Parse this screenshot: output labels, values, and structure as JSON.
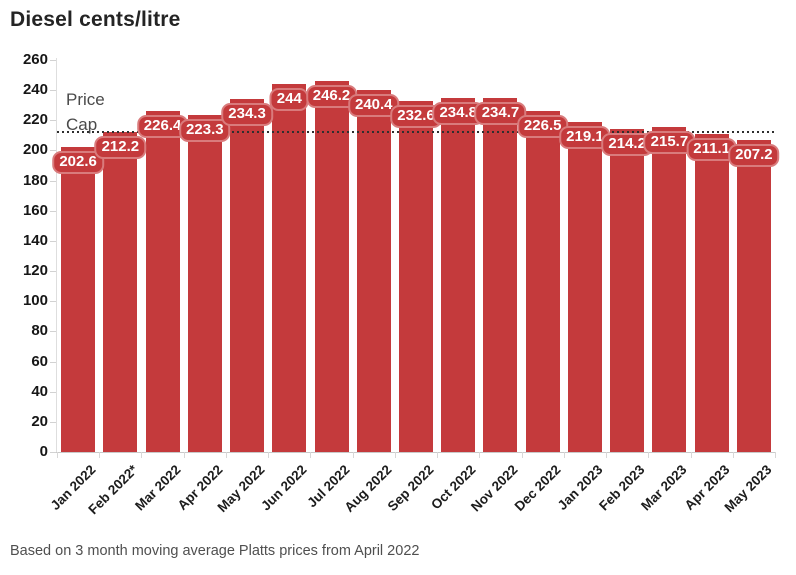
{
  "chart_data": {
    "type": "bar",
    "title": "Diesel cents/litre",
    "categories": [
      "Jan 2022",
      "Feb 2022*",
      "Mar 2022",
      "Apr 2022",
      "May 2022",
      "Jun 2022",
      "Jul 2022",
      "Aug 2022",
      "Sep 2022",
      "Oct 2022",
      "Nov 2022",
      "Dec 2022",
      "Jan 2023",
      "Feb 2023",
      "Mar 2023",
      "Apr 2023",
      "May 2023"
    ],
    "values": [
      202.6,
      212.2,
      226.4,
      223.3,
      234.3,
      244,
      246.2,
      240.4,
      232.6,
      234.8,
      234.7,
      226.5,
      219.1,
      214.2,
      215.7,
      211.1,
      207.2
    ],
    "y_ticks": [
      0,
      20,
      40,
      60,
      80,
      100,
      120,
      140,
      160,
      180,
      200,
      220,
      240,
      260
    ],
    "ylim": [
      0,
      260
    ],
    "xlabel": "",
    "ylabel": "",
    "grid": false,
    "legend": false,
    "bar_color": "#c43a3c",
    "value_label_text_color": "#ffffff",
    "reference_line": {
      "value": 212,
      "label_line1": "Price",
      "label_line2": "Cap",
      "color": "#2e2e2e"
    },
    "note": "Based on 3 month moving average Platts prices from April 2022"
  }
}
